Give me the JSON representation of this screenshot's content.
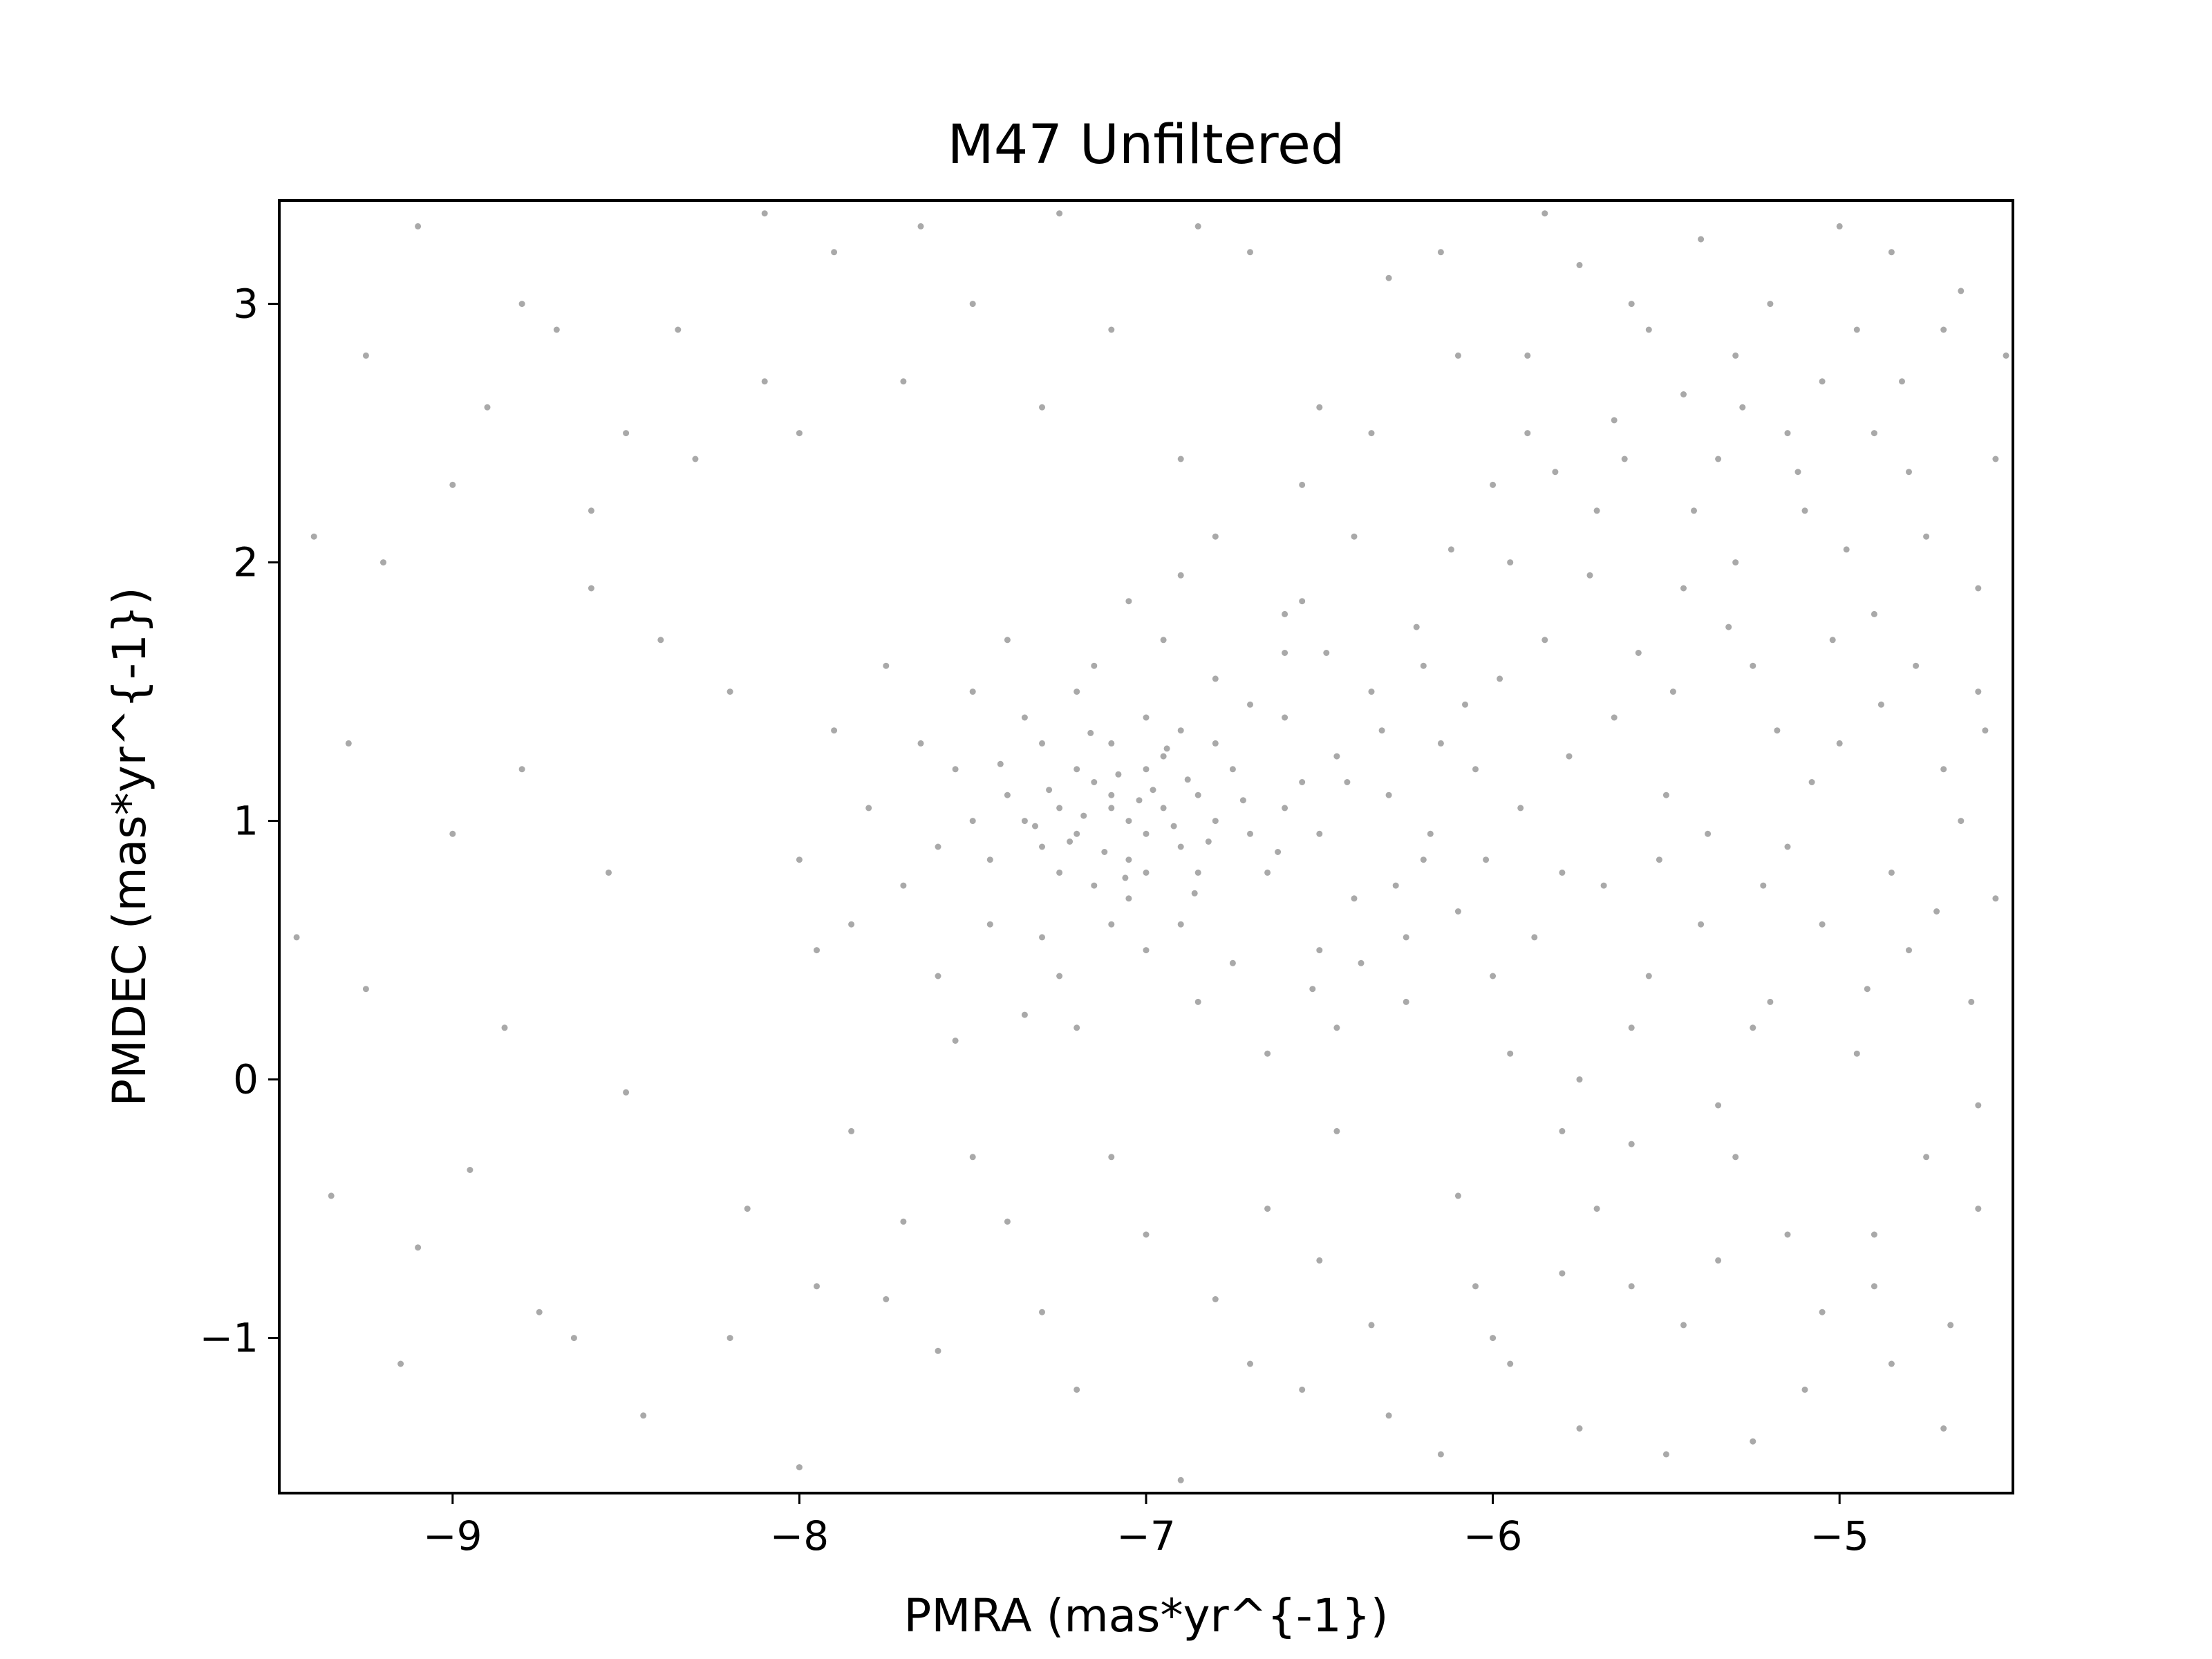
{
  "chart_data": {
    "type": "scatter",
    "title": "M47 Unfiltered",
    "xlabel": "PMRA (mas*yr^{-1})",
    "ylabel": "PMDEC (mas*yr^{-1})",
    "xlim": [
      -9.5,
      -4.5
    ],
    "ylim": [
      -1.6,
      3.4
    ],
    "x_ticks": [
      -9,
      -8,
      -7,
      -6,
      -5
    ],
    "x_tick_labels": [
      "−9",
      "−8",
      "−7",
      "−6",
      "−5"
    ],
    "y_ticks": [
      -1,
      0,
      1,
      2,
      3
    ],
    "y_tick_labels": [
      "−1",
      "0",
      "1",
      "2",
      "3"
    ],
    "grid": false,
    "legend": "none",
    "marker_color": "#a9a9a9",
    "series": [
      {
        "points": [
          [
            -7.1,
            1.1
          ],
          [
            -7.05,
            1.0
          ],
          [
            -6.95,
            1.05
          ],
          [
            -7.2,
            0.95
          ],
          [
            -7.0,
            1.2
          ],
          [
            -6.9,
            0.9
          ],
          [
            -7.15,
            1.15
          ],
          [
            -7.05,
            0.85
          ],
          [
            -6.85,
            1.1
          ],
          [
            -7.25,
            1.05
          ],
          [
            -7.3,
            0.9
          ],
          [
            -7.0,
            0.8
          ],
          [
            -6.8,
            1.0
          ],
          [
            -7.1,
            1.3
          ],
          [
            -6.95,
            1.25
          ],
          [
            -7.2,
            1.2
          ],
          [
            -7.35,
            1.0
          ],
          [
            -6.7,
            0.95
          ],
          [
            -7.05,
            0.7
          ],
          [
            -6.9,
            1.35
          ],
          [
            -7.4,
            1.1
          ],
          [
            -7.15,
            0.75
          ],
          [
            -6.75,
            1.2
          ],
          [
            -7.25,
            0.8
          ],
          [
            -6.85,
            0.8
          ],
          [
            -7.0,
            1.4
          ],
          [
            -6.6,
            1.05
          ],
          [
            -7.45,
            0.85
          ],
          [
            -7.3,
            1.3
          ],
          [
            -6.8,
            1.3
          ],
          [
            -7.5,
            1.0
          ],
          [
            -7.1,
            0.6
          ],
          [
            -6.65,
            0.8
          ],
          [
            -7.35,
            1.4
          ],
          [
            -6.55,
            1.15
          ],
          [
            -7.55,
            1.2
          ],
          [
            -6.9,
            0.6
          ],
          [
            -7.2,
            1.5
          ],
          [
            -6.7,
            1.45
          ],
          [
            -7.6,
            0.9
          ],
          [
            -7.0,
            0.5
          ],
          [
            -6.5,
            0.95
          ],
          [
            -7.45,
            0.6
          ],
          [
            -6.6,
            1.4
          ],
          [
            -7.3,
            0.55
          ],
          [
            -6.45,
            1.25
          ],
          [
            -7.65,
            1.3
          ],
          [
            -6.8,
            1.55
          ],
          [
            -7.15,
            1.6
          ],
          [
            -6.95,
            1.7
          ],
          [
            -7.7,
            0.75
          ],
          [
            -6.4,
            0.7
          ],
          [
            -7.5,
            1.5
          ],
          [
            -6.5,
            0.5
          ],
          [
            -7.8,
            1.05
          ],
          [
            -6.3,
            1.1
          ],
          [
            -7.25,
            0.4
          ],
          [
            -6.75,
            0.45
          ],
          [
            -7.4,
            1.7
          ],
          [
            -6.6,
            1.65
          ],
          [
            -7.85,
            0.6
          ],
          [
            -6.2,
            0.85
          ],
          [
            -7.05,
            1.85
          ],
          [
            -6.85,
            0.3
          ],
          [
            -7.6,
            0.4
          ],
          [
            -6.35,
            1.5
          ],
          [
            -7.9,
            1.35
          ],
          [
            -6.25,
            0.55
          ],
          [
            -7.35,
            0.25
          ],
          [
            -6.55,
            1.85
          ],
          [
            -7.2,
            0.2
          ],
          [
            -6.9,
            1.95
          ],
          [
            -7.75,
            1.6
          ],
          [
            -6.15,
            1.3
          ],
          [
            -8.0,
            0.85
          ],
          [
            -6.1,
            0.65
          ],
          [
            -7.95,
            0.5
          ],
          [
            -6.45,
            0.2
          ],
          [
            -7.55,
            0.15
          ],
          [
            -6.65,
            0.1
          ],
          [
            -7.1,
            1.05
          ],
          [
            -7.0,
            0.95
          ],
          [
            -6.98,
            1.12
          ],
          [
            -7.12,
            0.88
          ],
          [
            -7.08,
            1.18
          ],
          [
            -6.92,
            0.98
          ],
          [
            -7.18,
            1.02
          ],
          [
            -7.02,
            1.08
          ],
          [
            -6.88,
            1.16
          ],
          [
            -7.22,
            0.92
          ],
          [
            -7.28,
            1.12
          ],
          [
            -6.82,
            0.92
          ],
          [
            -7.06,
            0.78
          ],
          [
            -6.94,
            1.28
          ],
          [
            -7.32,
            0.98
          ],
          [
            -6.72,
            1.08
          ],
          [
            -7.16,
            1.34
          ],
          [
            -6.86,
            0.72
          ],
          [
            -7.42,
            1.22
          ],
          [
            -6.62,
            0.88
          ],
          [
            -9.4,
            2.1
          ],
          [
            -9.3,
            1.3
          ],
          [
            -9.1,
            3.3
          ],
          [
            -8.9,
            2.6
          ],
          [
            -8.7,
            2.9
          ],
          [
            -8.5,
            2.5
          ],
          [
            -8.3,
            2.4
          ],
          [
            -8.1,
            2.7
          ],
          [
            -8.0,
            2.5
          ],
          [
            -8.2,
            1.5
          ],
          [
            -8.6,
            1.9
          ],
          [
            -8.8,
            1.2
          ],
          [
            -9.0,
            0.95
          ],
          [
            -9.2,
            2.0
          ],
          [
            -8.4,
            1.7
          ],
          [
            -8.55,
            0.8
          ],
          [
            -8.85,
            0.2
          ],
          [
            -9.35,
            -0.45
          ],
          [
            -9.1,
            -0.65
          ],
          [
            -8.75,
            -0.9
          ],
          [
            -8.45,
            -1.3
          ],
          [
            -8.2,
            -1.0
          ],
          [
            -8.0,
            -1.5
          ],
          [
            -7.95,
            -0.8
          ],
          [
            -7.7,
            -0.55
          ],
          [
            -7.5,
            -0.3
          ],
          [
            -7.3,
            -0.9
          ],
          [
            -7.2,
            -1.2
          ],
          [
            -7.0,
            -0.6
          ],
          [
            -6.9,
            -1.55
          ],
          [
            -6.7,
            -1.1
          ],
          [
            -6.5,
            -0.7
          ],
          [
            -6.3,
            -1.3
          ],
          [
            -6.1,
            -0.45
          ],
          [
            -6.0,
            -1.0
          ],
          [
            -5.8,
            -0.2
          ],
          [
            -5.6,
            -0.8
          ],
          [
            -5.5,
            -1.45
          ],
          [
            -5.3,
            -0.3
          ],
          [
            -5.1,
            -1.2
          ],
          [
            -4.9,
            -0.6
          ],
          [
            -4.7,
            -1.35
          ],
          [
            -4.6,
            -0.1
          ],
          [
            -5.2,
            0.3
          ],
          [
            -5.4,
            0.6
          ],
          [
            -5.6,
            0.2
          ],
          [
            -5.8,
            0.8
          ],
          [
            -4.8,
            0.5
          ],
          [
            -4.65,
            1.0
          ],
          [
            -5.0,
            1.3
          ],
          [
            -5.25,
            1.6
          ],
          [
            -5.45,
            1.9
          ],
          [
            -5.7,
            2.2
          ],
          [
            -5.9,
            2.5
          ],
          [
            -6.1,
            2.8
          ],
          [
            -6.3,
            3.1
          ],
          [
            -6.5,
            2.6
          ],
          [
            -6.7,
            3.2
          ],
          [
            -6.9,
            2.4
          ],
          [
            -7.1,
            2.9
          ],
          [
            -7.3,
            2.6
          ],
          [
            -7.5,
            3.0
          ],
          [
            -7.7,
            2.7
          ],
          [
            -7.9,
            3.2
          ],
          [
            -8.1,
            3.35
          ],
          [
            -8.35,
            2.9
          ],
          [
            -8.6,
            2.2
          ],
          [
            -8.8,
            3.0
          ],
          [
            -9.0,
            2.3
          ],
          [
            -9.25,
            2.8
          ],
          [
            -4.55,
            2.4
          ],
          [
            -4.7,
            2.9
          ],
          [
            -4.85,
            3.2
          ],
          [
            -5.05,
            2.7
          ],
          [
            -5.2,
            3.0
          ],
          [
            -5.35,
            2.4
          ],
          [
            -5.55,
            2.9
          ],
          [
            -5.75,
            3.15
          ],
          [
            -5.95,
            2.0
          ],
          [
            -6.2,
            1.6
          ],
          [
            -6.4,
            2.1
          ],
          [
            -6.6,
            1.8
          ],
          [
            -6.8,
            2.1
          ],
          [
            -5.3,
            2.0
          ],
          [
            -5.1,
            2.2
          ],
          [
            -4.9,
            1.8
          ],
          [
            -4.6,
            1.5
          ],
          [
            -4.75,
            2.1
          ],
          [
            -5.65,
            1.4
          ],
          [
            -5.85,
            1.7
          ],
          [
            -6.05,
            1.2
          ],
          [
            -5.5,
            1.1
          ],
          [
            -5.15,
            0.9
          ],
          [
            -4.95,
            0.1
          ],
          [
            -5.35,
            -0.1
          ],
          [
            -5.7,
            -0.5
          ],
          [
            -5.95,
            0.1
          ],
          [
            -6.25,
            0.3
          ],
          [
            -6.45,
            -0.2
          ],
          [
            -6.65,
            -0.5
          ],
          [
            -7.85,
            -0.2
          ],
          [
            -8.15,
            -0.5
          ],
          [
            -8.5,
            -0.05
          ],
          [
            -8.95,
            -0.35
          ],
          [
            -9.25,
            0.35
          ],
          [
            -9.45,
            0.55
          ],
          [
            -9.15,
            -1.1
          ],
          [
            -8.65,
            -1.0
          ],
          [
            -7.6,
            -1.05
          ],
          [
            -6.15,
            -1.45
          ],
          [
            -5.95,
            -1.1
          ],
          [
            -5.75,
            -1.35
          ],
          [
            -5.45,
            -0.95
          ],
          [
            -5.25,
            -1.4
          ],
          [
            -5.05,
            -0.9
          ],
          [
            -4.85,
            -1.1
          ],
          [
            -4.6,
            -0.5
          ],
          [
            -4.55,
            0.7
          ],
          [
            -4.6,
            1.9
          ],
          [
            -4.52,
            2.8
          ],
          [
            -5.0,
            3.3
          ],
          [
            -5.4,
            3.25
          ],
          [
            -5.85,
            3.35
          ],
          [
            -6.15,
            3.2
          ],
          [
            -6.85,
            3.3
          ],
          [
            -7.25,
            3.35
          ],
          [
            -7.65,
            3.3
          ],
          [
            -4.9,
            2.5
          ],
          [
            -5.15,
            2.5
          ],
          [
            -5.45,
            2.65
          ],
          [
            -5.65,
            2.55
          ],
          [
            -5.9,
            2.8
          ],
          [
            -6.0,
            2.3
          ],
          [
            -6.35,
            2.5
          ],
          [
            -6.55,
            2.3
          ],
          [
            -4.8,
            2.35
          ],
          [
            -4.65,
            3.05
          ],
          [
            -4.95,
            2.9
          ],
          [
            -5.3,
            2.8
          ],
          [
            -5.6,
            3.0
          ],
          [
            -4.7,
            1.2
          ],
          [
            -4.85,
            0.8
          ],
          [
            -5.05,
            0.6
          ],
          [
            -5.25,
            0.2
          ],
          [
            -5.55,
            0.4
          ],
          [
            -5.75,
            0.0
          ],
          [
            -6.0,
            0.4
          ],
          [
            -4.75,
            -0.3
          ],
          [
            -4.9,
            -0.8
          ],
          [
            -5.15,
            -0.6
          ],
          [
            -5.35,
            -0.7
          ],
          [
            -5.6,
            -0.25
          ],
          [
            -5.8,
            -0.75
          ],
          [
            -6.05,
            -0.8
          ],
          [
            -6.35,
            -0.95
          ],
          [
            -6.55,
            -1.2
          ],
          [
            -6.8,
            -0.85
          ],
          [
            -7.1,
            -0.3
          ],
          [
            -7.4,
            -0.55
          ],
          [
            -7.75,
            -0.85
          ],
          [
            -4.58,
            1.35
          ],
          [
            -4.62,
            0.3
          ],
          [
            -4.68,
            -0.95
          ],
          [
            -4.72,
            0.65
          ],
          [
            -4.78,
            1.6
          ],
          [
            -4.82,
            2.7
          ],
          [
            -4.88,
            1.45
          ],
          [
            -4.92,
            0.35
          ],
          [
            -4.98,
            2.05
          ],
          [
            -5.02,
            1.7
          ],
          [
            -5.08,
            1.15
          ],
          [
            -5.12,
            2.35
          ],
          [
            -5.18,
            1.35
          ],
          [
            -5.22,
            0.75
          ],
          [
            -5.28,
            2.6
          ],
          [
            -5.32,
            1.75
          ],
          [
            -5.38,
            0.95
          ],
          [
            -5.42,
            2.2
          ],
          [
            -5.48,
            1.5
          ],
          [
            -5.52,
            0.85
          ],
          [
            -5.58,
            1.65
          ],
          [
            -5.62,
            2.4
          ],
          [
            -5.68,
            0.75
          ],
          [
            -5.72,
            1.95
          ],
          [
            -5.78,
            1.25
          ],
          [
            -5.82,
            2.35
          ],
          [
            -5.88,
            0.55
          ],
          [
            -5.92,
            1.05
          ],
          [
            -5.98,
            1.55
          ],
          [
            -6.02,
            0.85
          ],
          [
            -6.08,
            1.45
          ],
          [
            -6.12,
            2.05
          ],
          [
            -6.18,
            0.95
          ],
          [
            -6.22,
            1.75
          ],
          [
            -6.28,
            0.75
          ],
          [
            -6.32,
            1.35
          ],
          [
            -6.38,
            0.45
          ],
          [
            -6.42,
            1.15
          ],
          [
            -6.48,
            1.65
          ],
          [
            -6.52,
            0.35
          ]
        ]
      }
    ]
  }
}
